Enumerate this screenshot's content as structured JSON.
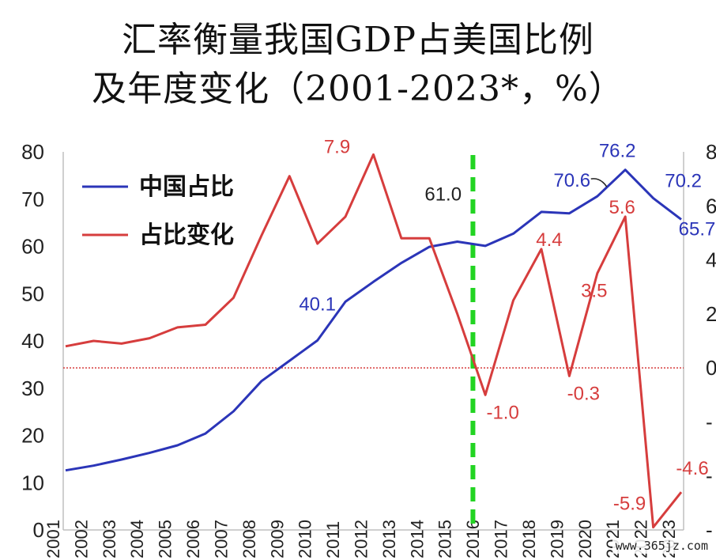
{
  "chart_data": {
    "type": "line",
    "title_line1": "汇率衡量我国GDP占美国比例",
    "title_line2": "及年度变化（2001-2023*，%）",
    "x": [
      2001,
      2002,
      2003,
      2004,
      2005,
      2006,
      2007,
      2008,
      2009,
      2010,
      2011,
      2012,
      2013,
      2014,
      2015,
      2016,
      2017,
      2018,
      2019,
      2020,
      2021,
      2022,
      2023
    ],
    "series": [
      {
        "name": "中国占比",
        "axis": "left",
        "color": "#2b35b8",
        "values": [
          12.6,
          13.6,
          14.9,
          16.3,
          17.9,
          20.4,
          25.1,
          31.5,
          35.8,
          40.1,
          48.3,
          52.5,
          56.5,
          59.9,
          61.0,
          60.1,
          62.7,
          67.3,
          67.0,
          70.6,
          76.2,
          70.2,
          65.7
        ]
      },
      {
        "name": "占比变化",
        "axis": "right",
        "color": "#d63d3d",
        "values": [
          0.8,
          1.0,
          0.9,
          1.1,
          1.5,
          1.6,
          2.6,
          4.9,
          7.1,
          4.6,
          5.6,
          7.9,
          4.8,
          4.8,
          2.0,
          -1.0,
          2.5,
          4.4,
          -0.3,
          3.5,
          5.6,
          -5.9,
          -4.6
        ]
      }
    ],
    "data_labels": [
      {
        "series": 0,
        "index": 9,
        "text": "40.1"
      },
      {
        "series": 0,
        "index": 14,
        "text": "61.0"
      },
      {
        "series": 0,
        "index": 19,
        "text": "70.6"
      },
      {
        "series": 0,
        "index": 20,
        "text": "76.2"
      },
      {
        "series": 0,
        "index": 21,
        "text": "70.2"
      },
      {
        "series": 0,
        "index": 22,
        "text": "65.7"
      },
      {
        "series": 1,
        "index": 11,
        "text": "7.9"
      },
      {
        "series": 1,
        "index": 15,
        "text": "-1.0"
      },
      {
        "series": 1,
        "index": 17,
        "text": "4.4"
      },
      {
        "series": 1,
        "index": 18,
        "text": "-0.3"
      },
      {
        "series": 1,
        "index": 19,
        "text": "3.5"
      },
      {
        "series": 1,
        "index": 20,
        "text": "5.6"
      },
      {
        "series": 1,
        "index": 21,
        "text": "-5.9"
      },
      {
        "series": 1,
        "index": 22,
        "text": "-4.6"
      }
    ],
    "left_axis": {
      "min": 0,
      "max": 80,
      "ticks": [
        "0",
        "10",
        "20",
        "30",
        "40",
        "50",
        "60",
        "70",
        "80"
      ]
    },
    "right_axis": {
      "min": -6,
      "max": 8,
      "visible_ticks": [
        "8",
        "6",
        "4",
        "2",
        "0",
        "-",
        "-",
        "-"
      ]
    },
    "reference_lines": {
      "zero_line_right_axis": 0,
      "zero_line_color": "#d63d3d",
      "vertical_marker_year": 2016,
      "vertical_marker_color": "#22d422"
    },
    "legend": {
      "placement": "top-left",
      "entries": [
        "中国占比",
        "占比变化"
      ]
    },
    "grid": false
  },
  "watermark": "www.365jz.com"
}
